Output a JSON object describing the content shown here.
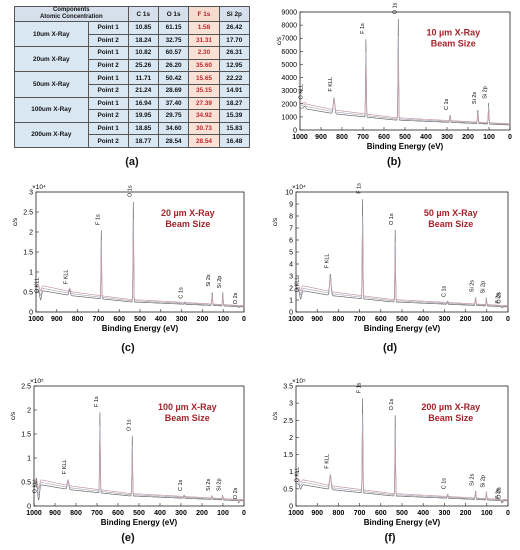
{
  "table": {
    "header": [
      "Components\nAtomic Concentration",
      "C 1s",
      "O 1s",
      "F 1s",
      "Si 2p"
    ],
    "header_line1": "Components",
    "header_line2": "Atomic Concentration",
    "groups": [
      {
        "label": "10um X-Ray",
        "rows": [
          {
            "point": "Point 1",
            "c": "10.85",
            "o": "61.15",
            "f": "1.58",
            "si": "26.42"
          },
          {
            "point": "Point 2",
            "c": "18.24",
            "o": "32.75",
            "f": "31.31",
            "si": "17.70"
          }
        ]
      },
      {
        "label": "20um X-Ray",
        "rows": [
          {
            "point": "Point 1",
            "c": "10.82",
            "o": "60.57",
            "f": "2.30",
            "si": "26.31"
          },
          {
            "point": "Point 2",
            "c": "25.26",
            "o": "26.20",
            "f": "35.60",
            "si": "12.95"
          }
        ]
      },
      {
        "label": "50um X-Ray",
        "rows": [
          {
            "point": "Point 1",
            "c": "11.71",
            "o": "50.42",
            "f": "15.65",
            "si": "22.22"
          },
          {
            "point": "Point 2",
            "c": "21.24",
            "o": "28.69",
            "f": "35.15",
            "si": "14.91"
          }
        ]
      },
      {
        "label": "100um X-Ray",
        "rows": [
          {
            "point": "Point 1",
            "c": "16.94",
            "o": "37.40",
            "f": "27.39",
            "si": "18.27"
          },
          {
            "point": "Point 2",
            "c": "19.95",
            "o": "29.75",
            "f": "34.92",
            "si": "15.39"
          }
        ]
      },
      {
        "label": "200um X-Ray",
        "rows": [
          {
            "point": "Point 1",
            "c": "18.85",
            "o": "34.60",
            "f": "30.73",
            "si": "15.83"
          },
          {
            "point": "Point 2",
            "c": "18.77",
            "o": "28.54",
            "f": "28.54",
            "si": "16.48"
          }
        ]
      }
    ]
  },
  "captions": [
    "(a)",
    "(b)",
    "(c)",
    "(d)",
    "(e)",
    "(f)"
  ],
  "colors": {
    "annotation": "#a3242b",
    "trace_a": "#6e6e6e",
    "trace_b": "#b0b0c4",
    "trace_c": "#c99aa6"
  },
  "chart_data": [
    {
      "id": "b",
      "type": "line",
      "title": "10 µm X-Ray Beam Size",
      "annotation_lines": [
        "10 µm X-Ray",
        "Beam Size"
      ],
      "xlabel": "Binding Energy (eV)",
      "ylabel": "c/s",
      "xlim": [
        1000,
        0
      ],
      "ylim": [
        0,
        9000
      ],
      "xticks": [
        "1000",
        "900",
        "800",
        "700",
        "600",
        "500",
        "400",
        "300",
        "200",
        "100",
        "0"
      ],
      "yticks": [
        "0",
        "1000",
        "2000",
        "3000",
        "4000",
        "5000",
        "6000",
        "7000",
        "8000",
        "9000"
      ],
      "exponent": "",
      "peaks": [
        {
          "label": "O KLL",
          "x": 978,
          "y": 2100
        },
        {
          "label": "F KLL",
          "x": 838,
          "y": 2700
        },
        {
          "label": "F 1s",
          "x": 686,
          "y": 7100
        },
        {
          "label": "O 1s",
          "x": 532,
          "y": 8600
        },
        {
          "label": "C 1s",
          "x": 285,
          "y": 1300
        },
        {
          "label": "Si 2s",
          "x": 153,
          "y": 1750
        },
        {
          "label": "Si 2p",
          "x": 102,
          "y": 2150
        }
      ]
    },
    {
      "id": "c",
      "type": "line",
      "title": "20 µm X-Ray Beam Size",
      "annotation_lines": [
        "20 µm X-Ray",
        "Beam Size"
      ],
      "xlabel": "Binding Energy (eV)",
      "ylabel": "c/s",
      "xlim": [
        1000,
        0
      ],
      "ylim": [
        0,
        30000
      ],
      "xticks": [
        "1000",
        "900",
        "800",
        "700",
        "600",
        "500",
        "400",
        "300",
        "200",
        "100",
        "0"
      ],
      "yticks": [
        "0",
        "0.5",
        "1",
        "1.5",
        "2",
        "2.5",
        "3"
      ],
      "exponent": "×10⁴",
      "peaks": [
        {
          "label": "O KLL",
          "x": 978,
          "y": 4000
        },
        {
          "label": "F KLL",
          "x": 838,
          "y": 6200
        },
        {
          "label": "F 1s",
          "x": 686,
          "y": 21000
        },
        {
          "label": "O 1s",
          "x": 532,
          "y": 28000
        },
        {
          "label": "C 1s",
          "x": 285,
          "y": 2600
        },
        {
          "label": "Si 2s",
          "x": 153,
          "y": 5600
        },
        {
          "label": "Si 2p",
          "x": 102,
          "y": 5200
        },
        {
          "label": "O 2s",
          "x": 25,
          "y": 1200
        }
      ]
    },
    {
      "id": "d",
      "type": "line",
      "title": "50 µm X-Ray Beam Size",
      "annotation_lines": [
        "50 µm X-Ray",
        "Beam Size"
      ],
      "xlabel": "Binding Energy (eV)",
      "ylabel": "c/s",
      "xlim": [
        1000,
        0
      ],
      "ylim": [
        0,
        100000
      ],
      "xticks": [
        "1000",
        "900",
        "800",
        "700",
        "600",
        "500",
        "400",
        "300",
        "200",
        "100",
        "0"
      ],
      "yticks": [
        "0",
        "1",
        "2",
        "3",
        "4",
        "5",
        "6",
        "7",
        "8",
        "9",
        "10"
      ],
      "exponent": "×10⁴",
      "peaks": [
        {
          "label": "O KLL",
          "x": 978,
          "y": 14000
        },
        {
          "label": "F KLL",
          "x": 838,
          "y": 34000
        },
        {
          "label": "F 1s",
          "x": 686,
          "y": 96000
        },
        {
          "label": "O 1s",
          "x": 532,
          "y": 70000
        },
        {
          "label": "C 1s",
          "x": 285,
          "y": 10000
        },
        {
          "label": "Si 2s",
          "x": 153,
          "y": 14000
        },
        {
          "label": "Si 2p",
          "x": 102,
          "y": 13000
        },
        {
          "label": "F 2s",
          "x": 30,
          "y": 4500
        },
        {
          "label": "O 2s",
          "x": 25,
          "y": 4500
        }
      ]
    },
    {
      "id": "e",
      "type": "line",
      "title": "100 µm X-Ray Beam Size",
      "annotation_lines": [
        "100 µm X-Ray",
        "Beam Size"
      ],
      "xlabel": "Binding Energy (eV)",
      "ylabel": "c/s",
      "xlim": [
        1000,
        0
      ],
      "ylim": [
        0,
        250000
      ],
      "xticks": [
        "1000",
        "900",
        "800",
        "700",
        "600",
        "500",
        "400",
        "300",
        "200",
        "100",
        "0"
      ],
      "yticks": [
        "0",
        "0.5",
        "1",
        "1.5",
        "2",
        "2.5"
      ],
      "exponent": "×10⁵",
      "peaks": [
        {
          "label": "O KLL",
          "x": 978,
          "y": 20000
        },
        {
          "label": "F KLL",
          "x": 838,
          "y": 60000
        },
        {
          "label": "F 1s",
          "x": 686,
          "y": 200000
        },
        {
          "label": "O 1s",
          "x": 532,
          "y": 150000
        },
        {
          "label": "C 1s",
          "x": 285,
          "y": 25000
        },
        {
          "label": "Si 2s",
          "x": 153,
          "y": 25000
        },
        {
          "label": "Si 2p",
          "x": 102,
          "y": 25000
        },
        {
          "label": "O 2s",
          "x": 25,
          "y": 8000
        }
      ]
    },
    {
      "id": "f",
      "type": "line",
      "title": "200 µm X-Ray Beam Size",
      "annotation_lines": [
        "200 µm X-Ray",
        "Beam Size"
      ],
      "xlabel": "Binding Energy (eV)",
      "ylabel": "c/s",
      "xlim": [
        1000,
        0
      ],
      "ylim": [
        0,
        350000
      ],
      "xticks": [
        "1000",
        "900",
        "800",
        "700",
        "600",
        "500",
        "400",
        "300",
        "200",
        "100",
        "0"
      ],
      "yticks": [
        "0",
        "0.5",
        "1",
        "1.5",
        "2",
        "2.5",
        "3",
        "3.5"
      ],
      "exponent": "×10⁵",
      "peaks": [
        {
          "label": "O KLL",
          "x": 978,
          "y": 60000
        },
        {
          "label": "F KLL",
          "x": 838,
          "y": 100000
        },
        {
          "label": "F 1s",
          "x": 686,
          "y": 320000
        },
        {
          "label": "O 1s",
          "x": 532,
          "y": 270000
        },
        {
          "label": "C 1s",
          "x": 285,
          "y": 40000
        },
        {
          "label": "Si 2s",
          "x": 153,
          "y": 50000
        },
        {
          "label": "Si 2p",
          "x": 102,
          "y": 45000
        },
        {
          "label": "F 2s",
          "x": 30,
          "y": 12000
        },
        {
          "label": "O 2s",
          "x": 25,
          "y": 12000
        }
      ]
    }
  ]
}
